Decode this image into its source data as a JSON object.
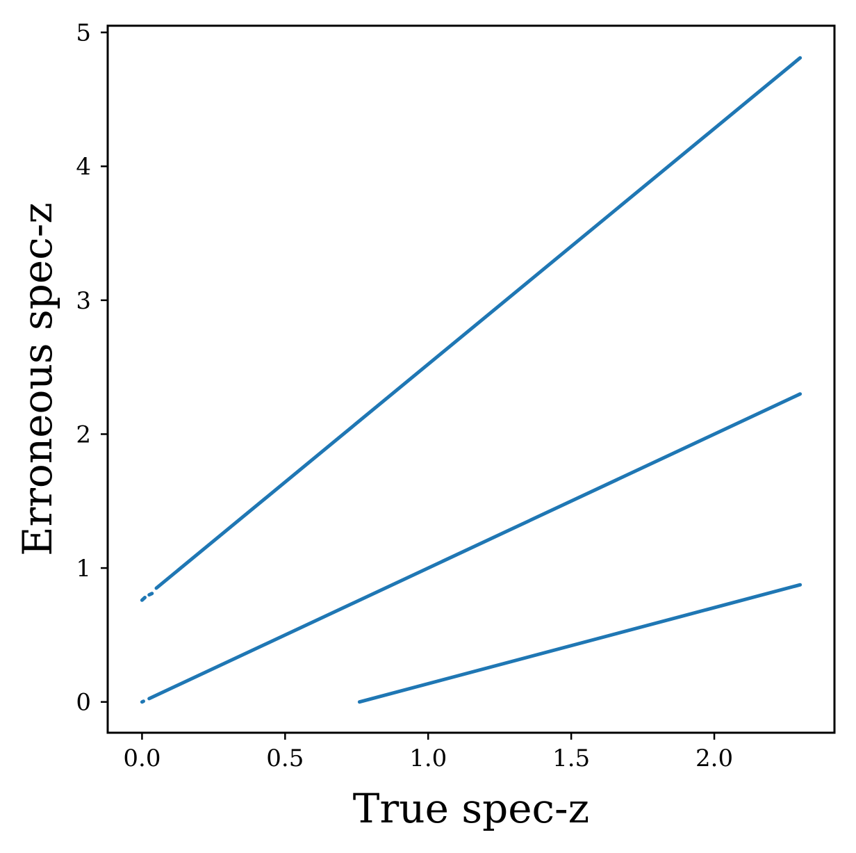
{
  "chart_data": {
    "type": "scatter",
    "title": "",
    "xlabel": "True spec-z",
    "ylabel": "Erroneous spec-z",
    "xlim": [
      -0.12,
      2.42
    ],
    "ylim": [
      -0.23,
      5.05
    ],
    "xticks": [
      0.0,
      0.5,
      1.0,
      1.5,
      2.0
    ],
    "xtick_labels": [
      "0.0",
      "0.5",
      "1.0",
      "1.5",
      "2.0"
    ],
    "yticks": [
      0,
      1,
      2,
      3,
      4,
      5
    ],
    "ytick_labels": [
      "0",
      "1",
      "2",
      "3",
      "4",
      "5"
    ],
    "grid": false,
    "legend": null,
    "color": "#1f77b4",
    "series": [
      {
        "segments": [
          {
            "x": [
              0.0,
              0.01
            ],
            "y": [
              0.76,
              0.78
            ]
          },
          {
            "x": [
              0.025,
              0.035
            ],
            "y": [
              0.8,
              0.81
            ]
          },
          {
            "x": [
              0.05,
              2.3
            ],
            "y": [
              0.85,
              4.81
            ]
          }
        ]
      },
      {
        "segments": [
          {
            "x": [
              0.0,
              0.005
            ],
            "y": [
              0.0,
              0.005
            ]
          },
          {
            "x": [
              0.025,
              2.3
            ],
            "y": [
              0.025,
              2.3
            ]
          }
        ]
      },
      {
        "segments": [
          {
            "x": [
              0.76,
              2.3
            ],
            "y": [
              0.0,
              0.875
            ]
          }
        ]
      }
    ]
  }
}
